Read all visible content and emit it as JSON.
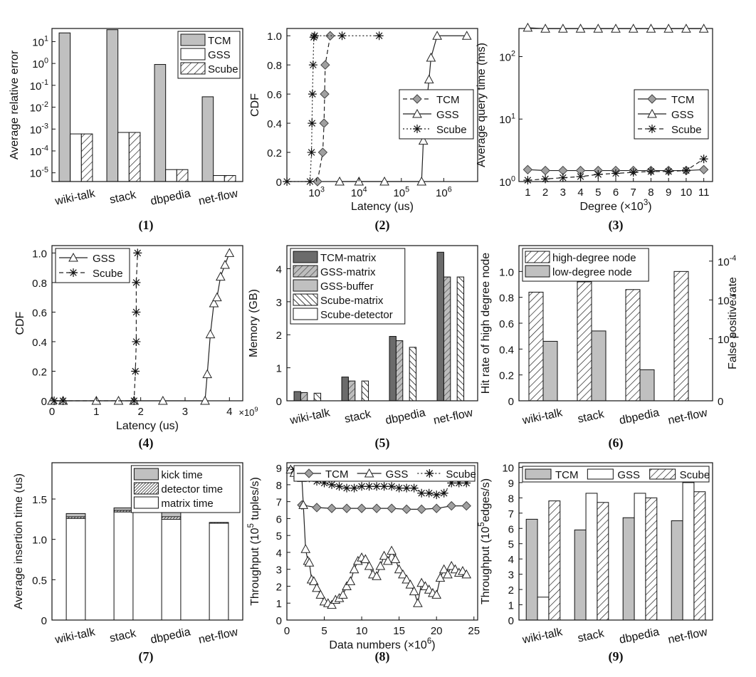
{
  "chart_data": [
    {
      "panel": "(1)",
      "type": "bar",
      "yscale": "log",
      "categories": [
        "wiki-talk",
        "stack",
        "dbpedia",
        "net-flow"
      ],
      "ylabel": "Average relative error",
      "ylim_exp": [
        -5.4,
        1.6
      ],
      "yticks": [
        {
          "exp": 1,
          "base": "10",
          "sup": "1"
        },
        {
          "exp": 0,
          "base": "10",
          "sup": "0"
        },
        {
          "exp": -1,
          "base": "10",
          "sup": "-1"
        },
        {
          "exp": -2,
          "base": "10",
          "sup": "-2"
        },
        {
          "exp": -3,
          "base": "10",
          "sup": "-3"
        },
        {
          "exp": -4,
          "base": "10",
          "sup": "-4"
        },
        {
          "exp": -5,
          "base": "10",
          "sup": "-5"
        }
      ],
      "legend": "top-right",
      "series": [
        {
          "name": "TCM",
          "fill": "#c0c0c0",
          "values": [
            25,
            35,
            0.9,
            0.03
          ]
        },
        {
          "name": "GSS",
          "fill": "#ffffff",
          "values": [
            0.0006,
            0.0007,
            1.4e-05,
            7.5e-06
          ]
        },
        {
          "name": "Scube",
          "fill": "hatch",
          "values": [
            0.0006,
            0.0007,
            1.4e-05,
            7.5e-06
          ]
        }
      ]
    },
    {
      "panel": "(2)",
      "type": "line",
      "xscale": "log",
      "xlabel": "Latency (us)",
      "ylabel": "CDF",
      "xlim_exp": [
        2.3,
        6.8
      ],
      "ylim": [
        0,
        1.05
      ],
      "xticks": [
        {
          "exp": 3,
          "base": "10",
          "sup": "3"
        },
        {
          "exp": 4,
          "base": "10",
          "sup": "4"
        },
        {
          "exp": 5,
          "base": "10",
          "sup": "5"
        },
        {
          "exp": 6,
          "base": "10",
          "sup": "6"
        }
      ],
      "yticks": [
        "0",
        "0.2",
        "0.4",
        "0.6",
        "0.8",
        "1.0"
      ],
      "legend": "center-right",
      "series": [
        {
          "name": "TCM",
          "marker": "diamond",
          "dash": "6,4",
          "x": [
            1050,
            1400,
            1500,
            1550,
            1600,
            2100
          ],
          "y": [
            0,
            0.2,
            0.4,
            0.6,
            0.8,
            1.0
          ]
        },
        {
          "name": "GSS",
          "marker": "triangle",
          "dash": "",
          "x": [
            3500,
            10000,
            40000,
            300000,
            330000,
            380000,
            450000,
            500000,
            700000,
            3500000
          ],
          "y": [
            0,
            0,
            0,
            0,
            0.28,
            0.5,
            0.7,
            0.85,
            1.0,
            1.0
          ]
        },
        {
          "name": "Scube",
          "marker": "star",
          "dash": "2,3",
          "x": [
            200,
            700,
            760,
            780,
            800,
            830,
            860,
            900,
            4000,
            30000
          ],
          "y": [
            0,
            0,
            0.2,
            0.4,
            0.6,
            0.8,
            0.99,
            1.0,
            1.0,
            1.0
          ]
        }
      ]
    },
    {
      "panel": "(3)",
      "type": "line",
      "yscale": "log",
      "xlabel": "Degree (×10",
      "xlabel_sup": "3",
      "xlabel_end": ")",
      "ylabel": "Average query time (ms)",
      "xlim": [
        0.5,
        11.5
      ],
      "ylim_exp": [
        0,
        2.45
      ],
      "xticks": [
        "1",
        "2",
        "3",
        "4",
        "5",
        "6",
        "7",
        "8",
        "9",
        "10",
        "11"
      ],
      "yticks": [
        {
          "exp": 0,
          "base": "10",
          "sup": "0"
        },
        {
          "exp": 1,
          "base": "10",
          "sup": "1"
        },
        {
          "exp": 2,
          "base": "10",
          "sup": "2"
        }
      ],
      "legend": "center-right",
      "series": [
        {
          "name": "TCM",
          "marker": "diamond",
          "dash": "",
          "x": [
            1,
            2,
            3,
            4,
            5,
            6,
            7,
            8,
            9,
            10,
            11
          ],
          "y": [
            1.55,
            1.5,
            1.5,
            1.5,
            1.5,
            1.5,
            1.5,
            1.5,
            1.5,
            1.5,
            1.55
          ]
        },
        {
          "name": "GSS",
          "marker": "triangle",
          "dash": "",
          "x": [
            1,
            2,
            3,
            4,
            5,
            6,
            7,
            8,
            9,
            10,
            11
          ],
          "y": [
            290,
            280,
            280,
            280,
            280,
            280,
            280,
            280,
            280,
            280,
            280
          ]
        },
        {
          "name": "Scube",
          "marker": "star",
          "dash": "6,4",
          "x": [
            1,
            2,
            3,
            4,
            5,
            6,
            7,
            8,
            9,
            10,
            11
          ],
          "y": [
            1.05,
            1.1,
            1.15,
            1.2,
            1.3,
            1.35,
            1.4,
            1.45,
            1.45,
            1.5,
            2.3
          ]
        }
      ]
    },
    {
      "panel": "(4)",
      "type": "line",
      "xlabel": "Latency (us)",
      "ylabel": "CDF",
      "x_multiplier": "×10",
      "x_multiplier_sup": "9",
      "xlim": [
        0,
        4.3
      ],
      "ylim": [
        0,
        1.05
      ],
      "xticks": [
        "0",
        "1",
        "2",
        "3",
        "4"
      ],
      "yticks": [
        "0",
        "0.2",
        "0.4",
        "0.6",
        "0.8",
        "1.0"
      ],
      "legend": "top-left",
      "series": [
        {
          "name": "GSS",
          "marker": "triangle",
          "dash": "",
          "x": [
            0,
            0.25,
            1,
            1.5,
            1.85,
            2.5,
            3.45,
            3.5,
            3.57,
            3.65,
            3.72,
            3.8,
            3.9,
            4.0
          ],
          "y": [
            0,
            0,
            0,
            0,
            0,
            0,
            0,
            0.18,
            0.45,
            0.66,
            0.7,
            0.84,
            0.92,
            1.0
          ]
        },
        {
          "name": "Scube",
          "marker": "star",
          "dash": "6,4",
          "x": [
            0.05,
            0.25,
            1.85,
            1.88,
            1.9,
            1.9,
            1.9,
            1.93
          ],
          "y": [
            0,
            0,
            0,
            0.2,
            0.4,
            0.6,
            0.8,
            1.0
          ]
        }
      ]
    },
    {
      "panel": "(5)",
      "type": "bar",
      "categories": [
        "wiki-talk",
        "stack",
        "dbpedia",
        "net-flow"
      ],
      "ylabel": "Memory (GB)",
      "ylim": [
        0,
        4.7
      ],
      "yticks": [
        "0",
        "1",
        "2",
        "3",
        "4"
      ],
      "legend": "top-left",
      "series": [
        {
          "name": "TCM-matrix",
          "fill": "#6b6b6b",
          "values": [
            0.28,
            0.72,
            1.95,
            4.5
          ]
        },
        {
          "name": "GSS-matrix",
          "fill": "hatch-gray",
          "values": [
            0.25,
            0.6,
            1.82,
            3.75
          ]
        },
        {
          "name": "GSS-buffer",
          "fill": "#c0c0c0",
          "values": [
            0,
            0,
            0,
            0
          ]
        },
        {
          "name": "Scube-matrix",
          "fill": "hatch-back",
          "values": [
            0.23,
            0.6,
            1.62,
            3.75
          ]
        },
        {
          "name": "Scube-detector",
          "fill": "#ffffff",
          "values": [
            0,
            0,
            0,
            0
          ]
        }
      ]
    },
    {
      "panel": "(6)",
      "type": "bar",
      "dual_axis": true,
      "categories": [
        "wiki-talk",
        "stack",
        "dbpedia",
        "net-flow"
      ],
      "ylabel": "Hit rate of high degree node",
      "y2label": "False positive rate",
      "ylim": [
        0,
        1.2
      ],
      "yticks": [
        "0",
        "0.2",
        "0.4",
        "0.6",
        "0.8",
        "1.0"
      ],
      "y2ticks": [
        {
          "pos": 0,
          "base": "0",
          "sup": ""
        },
        {
          "pos": 0.4,
          "base": "10",
          "sup": "-6"
        },
        {
          "pos": 0.65,
          "base": "10",
          "sup": "-5"
        },
        {
          "pos": 0.9,
          "base": "10",
          "sup": "-4"
        }
      ],
      "legend": "top-left",
      "series": [
        {
          "name": "high-degree node",
          "fill": "hatch",
          "values": [
            0.84,
            0.92,
            0.86,
            1.0
          ]
        },
        {
          "name": "low-degree node",
          "fill": "#c0c0c0",
          "values": [
            0.46,
            0.54,
            0.24,
            0.0
          ]
        }
      ]
    },
    {
      "panel": "(7)",
      "type": "bar",
      "stacked": true,
      "categories": [
        "wiki-talk",
        "stack",
        "dbpedia",
        "net-flow"
      ],
      "ylabel": "Average insertion time (us)",
      "ylim": [
        0,
        1.95
      ],
      "yticks": [
        "0",
        "0.5",
        "1.0",
        "1.5"
      ],
      "legend": "top-right",
      "series": [
        {
          "name": "kick time",
          "fill": "#c0c0c0",
          "values": [
            0.04,
            0.03,
            0.07,
            0.0
          ]
        },
        {
          "name": "detector time",
          "fill": "hatch-dense",
          "values": [
            0.02,
            0.02,
            0.03,
            0.01
          ]
        },
        {
          "name": "matrix time",
          "fill": "#ffffff",
          "values": [
            1.26,
            1.34,
            1.25,
            1.2
          ]
        }
      ]
    },
    {
      "panel": "(8)",
      "type": "line",
      "xlabel": "Data numbers (×10",
      "xlabel_sup": "6",
      "xlabel_end": ")",
      "ylabel": "Throughput (10",
      "ylabel_sup": "5",
      "ylabel_end": " tuples/s)",
      "xlim": [
        0,
        25.5
      ],
      "ylim": [
        0,
        9.3
      ],
      "xticks": [
        "0",
        "5",
        "10",
        "15",
        "20",
        "25"
      ],
      "yticks": [
        "0",
        "1",
        "2",
        "3",
        "4",
        "5",
        "6",
        "7",
        "8",
        "9"
      ],
      "legend": "top",
      "series": [
        {
          "name": "TCM",
          "marker": "diamond",
          "dash": "",
          "x": [
            2,
            4,
            6,
            8,
            10,
            12,
            14,
            16,
            18,
            20,
            22,
            24
          ],
          "y": [
            6.8,
            6.65,
            6.6,
            6.6,
            6.6,
            6.6,
            6.6,
            6.55,
            6.55,
            6.6,
            6.75,
            6.75
          ]
        },
        {
          "name": "GSS",
          "marker": "triangle",
          "dash": "",
          "x": [
            0.5,
            1,
            1.5,
            2,
            2.2,
            2.5,
            2.8,
            3,
            3.3,
            3.6,
            4,
            4.5,
            5,
            5.5,
            6,
            6.5,
            7,
            7.5,
            8,
            8.5,
            9,
            9.5,
            10,
            10.5,
            11,
            11.5,
            12,
            12.5,
            13,
            13.5,
            14,
            14.5,
            15,
            15.5,
            16,
            16.5,
            17,
            17.5,
            18,
            18.5,
            19,
            19.5,
            20,
            20.5,
            21,
            21.5,
            22,
            22.5,
            23,
            23.5,
            24
          ],
          "y": [
            8.9,
            8.7,
            8.6,
            8.4,
            6.8,
            4.2,
            3.5,
            3.4,
            2.4,
            2.3,
            1.9,
            1.5,
            1.1,
            1.0,
            0.9,
            1.2,
            1.3,
            1.5,
            2.0,
            2.3,
            3.0,
            3.5,
            3.7,
            3.6,
            3.2,
            2.7,
            2.6,
            3.2,
            3.8,
            3.5,
            4.1,
            3.6,
            3.0,
            2.7,
            2.4,
            2.1,
            1.7,
            1.0,
            2.2,
            2.0,
            1.8,
            1.6,
            1.5,
            2.5,
            3.0,
            2.7,
            3.2,
            3.0,
            2.8,
            2.9,
            2.7
          ]
        },
        {
          "name": "Scube",
          "marker": "star",
          "dash": "2,3",
          "x": [
            1,
            2,
            3,
            4,
            5,
            6,
            7,
            8,
            9,
            10,
            11,
            12,
            13,
            14,
            15,
            16,
            17,
            18,
            19,
            20,
            21,
            22,
            23,
            24
          ],
          "y": [
            8.9,
            8.6,
            8.4,
            8.2,
            8.1,
            8.0,
            7.9,
            7.8,
            7.8,
            7.9,
            7.9,
            7.9,
            7.9,
            7.9,
            7.8,
            7.8,
            7.8,
            7.5,
            7.5,
            7.4,
            7.5,
            8.1,
            8.1,
            8.1
          ]
        }
      ]
    },
    {
      "panel": "(9)",
      "type": "bar",
      "categories": [
        "wiki-talk",
        "stack",
        "dbpedia",
        "net-flow"
      ],
      "ylabel": "Throughput (10",
      "ylabel_sup": "5",
      "ylabel_end": "edges/s)",
      "ylim": [
        0,
        10.3
      ],
      "yticks": [
        "0",
        "1",
        "2",
        "3",
        "4",
        "5",
        "6",
        "7",
        "8",
        "9",
        "10"
      ],
      "legend": "top",
      "series": [
        {
          "name": "TCM",
          "fill": "#c0c0c0",
          "values": [
            6.6,
            5.9,
            6.7,
            6.5
          ]
        },
        {
          "name": "GSS",
          "fill": "#ffffff",
          "values": [
            1.5,
            8.3,
            8.3,
            9.0
          ]
        },
        {
          "name": "Scube",
          "fill": "hatch",
          "values": [
            7.8,
            7.7,
            8.0,
            8.4
          ]
        }
      ]
    }
  ]
}
